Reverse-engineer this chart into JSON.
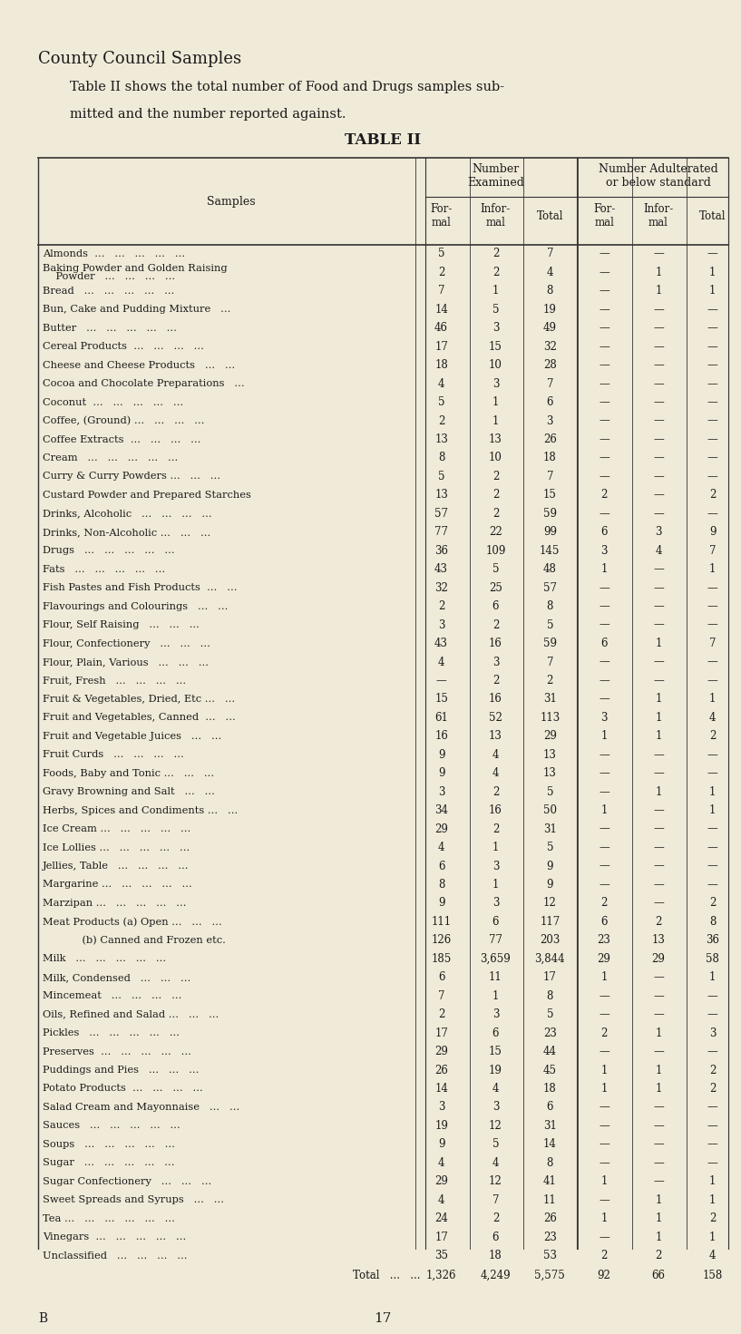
{
  "title_line1": "County Council Samples",
  "subtitle": "Table II shows the total number of Food and Drugs samples sub-\nmitted and the number reported against.",
  "table_title": "TABLE II",
  "col_group1": "Number\nExamined",
  "col_group2": "Number Adulterated\nor below standard",
  "col_headers": [
    "For-\nmal",
    "Infor-\nmal",
    "Total",
    "For-\nmal",
    "Infor-\nmal",
    "Total"
  ],
  "row_label_header": "Samples",
  "footer_left": "B",
  "footer_center": "17",
  "rows": [
    [
      "Almonds  ...   ...   ...   ...   ...",
      "5",
      "2",
      "7",
      "—",
      "—",
      "—"
    ],
    [
      "Baking Powder and Golden Raising\n    Powder   ...   ...   ...   ...",
      "2",
      "2",
      "4",
      "—",
      "1",
      "1"
    ],
    [
      "Bread   ...   ...   ...   ...   ...",
      "7",
      "1",
      "8",
      "—",
      "1",
      "1"
    ],
    [
      "Bun, Cake and Pudding Mixture   ...",
      "14",
      "5",
      "19",
      "—",
      "—",
      "—"
    ],
    [
      "Butter   ...   ...   ...   ...   ...",
      "46",
      "3",
      "49",
      "—",
      "—",
      "—"
    ],
    [
      "Cereal Products  ...   ...   ...   ...",
      "17",
      "15",
      "32",
      "—",
      "—",
      "—"
    ],
    [
      "Cheese and Cheese Products   ...   ...",
      "18",
      "10",
      "28",
      "—",
      "—",
      "—"
    ],
    [
      "Cocoa and Chocolate Preparations   ...",
      "4",
      "3",
      "7",
      "—",
      "—",
      "—"
    ],
    [
      "Coconut  ...   ...   ...   ...   ...",
      "5",
      "1",
      "6",
      "—",
      "—",
      "—"
    ],
    [
      "Coffee, (Ground) ...   ...   ...   ...",
      "2",
      "1",
      "3",
      "—",
      "—",
      "—"
    ],
    [
      "Coffee Extracts  ...   ...   ...   ...",
      "13",
      "13",
      "26",
      "—",
      "—",
      "—"
    ],
    [
      "Cream   ...   ...   ...   ...   ...",
      "8",
      "10",
      "18",
      "—",
      "—",
      "—"
    ],
    [
      "Curry & Curry Powders ...   ...   ...",
      "5",
      "2",
      "7",
      "—",
      "—",
      "—"
    ],
    [
      "Custard Powder and Prepared Starches",
      "13",
      "2",
      "15",
      "2",
      "—",
      "2"
    ],
    [
      "Drinks, Alcoholic   ...   ...   ...   ...",
      "57",
      "2",
      "59",
      "—",
      "—",
      "—"
    ],
    [
      "Drinks, Non-Alcoholic ...   ...   ...",
      "77",
      "22",
      "99",
      "6",
      "3",
      "9"
    ],
    [
      "Drugs   ...   ...   ...   ...   ...",
      "36",
      "109",
      "145",
      "3",
      "4",
      "7"
    ],
    [
      "Fats   ...   ...   ...   ...   ...",
      "43",
      "5",
      "48",
      "1",
      "—",
      "1"
    ],
    [
      "Fish Pastes and Fish Products  ...   ...",
      "32",
      "25",
      "57",
      "—",
      "—",
      "—"
    ],
    [
      "Flavourings and Colourings   ...   ...",
      "2",
      "6",
      "8",
      "—",
      "—",
      "—"
    ],
    [
      "Flour, Self Raising   ...   ...   ...",
      "3",
      "2",
      "5",
      "—",
      "—",
      "—"
    ],
    [
      "Flour, Confectionery   ...   ...   ...",
      "43",
      "16",
      "59",
      "6",
      "1",
      "7"
    ],
    [
      "Flour, Plain, Various   ...   ...   ...",
      "4",
      "3",
      "7",
      "—",
      "—",
      "—"
    ],
    [
      "Fruit, Fresh   ...   ...   ...   ...",
      "—",
      "2",
      "2",
      "—",
      "—",
      "—"
    ],
    [
      "Fruit & Vegetables, Dried, Etc ...   ...",
      "15",
      "16",
      "31",
      "—",
      "1",
      "1"
    ],
    [
      "Fruit and Vegetables, Canned  ...   ...",
      "61",
      "52",
      "113",
      "3",
      "1",
      "4"
    ],
    [
      "Fruit and Vegetable Juices   ...   ...",
      "16",
      "13",
      "29",
      "1",
      "1",
      "2"
    ],
    [
      "Fruit Curds   ...   ...   ...   ...",
      "9",
      "4",
      "13",
      "—",
      "—",
      "—"
    ],
    [
      "Foods, Baby and Tonic ...   ...   ...",
      "9",
      "4",
      "13",
      "—",
      "—",
      "—"
    ],
    [
      "Gravy Browning and Salt   ...   ...",
      "3",
      "2",
      "5",
      "—",
      "1",
      "1"
    ],
    [
      "Herbs, Spices and Condiments ...   ...",
      "34",
      "16",
      "50",
      "1",
      "—",
      "1"
    ],
    [
      "Ice Cream ...   ...   ...   ...   ...",
      "29",
      "2",
      "31",
      "—",
      "—",
      "—"
    ],
    [
      "Ice Lollies ...   ...   ...   ...   ...",
      "4",
      "1",
      "5",
      "—",
      "—",
      "—"
    ],
    [
      "Jellies, Table   ...   ...   ...   ...",
      "6",
      "3",
      "9",
      "—",
      "—",
      "—"
    ],
    [
      "Margarine ...   ...   ...   ...   ...",
      "8",
      "1",
      "9",
      "—",
      "—",
      "—"
    ],
    [
      "Marzipan ...   ...   ...   ...   ...",
      "9",
      "3",
      "12",
      "2",
      "—",
      "2"
    ],
    [
      "Meat Products (a) Open ...   ...   ...",
      "111",
      "6",
      "117",
      "6",
      "2",
      "8"
    ],
    [
      "            (b) Canned and Frozen etc.",
      "126",
      "77",
      "203",
      "23",
      "13",
      "36"
    ],
    [
      "Milk   ...   ...   ...   ...   ...",
      "185",
      "3,659",
      "3,844",
      "29",
      "29",
      "58"
    ],
    [
      "Milk, Condensed   ...   ...   ...",
      "6",
      "11",
      "17",
      "1",
      "—",
      "1"
    ],
    [
      "Mincemeat   ...   ...   ...   ...",
      "7",
      "1",
      "8",
      "—",
      "—",
      "—"
    ],
    [
      "Oils, Refined and Salad ...   ...   ...",
      "2",
      "3",
      "5",
      "—",
      "—",
      "—"
    ],
    [
      "Pickles   ...   ...   ...   ...   ...",
      "17",
      "6",
      "23",
      "2",
      "1",
      "3"
    ],
    [
      "Preserves  ...   ...   ...   ...   ...",
      "29",
      "15",
      "44",
      "—",
      "—",
      "—"
    ],
    [
      "Puddings and Pies   ...   ...   ...",
      "26",
      "19",
      "45",
      "1",
      "1",
      "2"
    ],
    [
      "Potato Products  ...   ...   ...   ...",
      "14",
      "4",
      "18",
      "1",
      "1",
      "2"
    ],
    [
      "Salad Cream and Mayonnaise   ...   ...",
      "3",
      "3",
      "6",
      "—",
      "—",
      "—"
    ],
    [
      "Sauces   ...   ...   ...   ...   ...",
      "19",
      "12",
      "31",
      "—",
      "—",
      "—"
    ],
    [
      "Soups   ...   ...   ...   ...   ...",
      "9",
      "5",
      "14",
      "—",
      "—",
      "—"
    ],
    [
      "Sugar   ...   ...   ...   ...   ...",
      "4",
      "4",
      "8",
      "—",
      "—",
      "—"
    ],
    [
      "Sugar Confectionery   ...   ...   ...",
      "29",
      "12",
      "41",
      "1",
      "—",
      "1"
    ],
    [
      "Sweet Spreads and Syrups   ...   ...",
      "4",
      "7",
      "11",
      "—",
      "1",
      "1"
    ],
    [
      "Tea ...   ...   ...   ...   ...   ...",
      "24",
      "2",
      "26",
      "1",
      "1",
      "2"
    ],
    [
      "Vinegars  ...   ...   ...   ...   ...",
      "17",
      "6",
      "23",
      "—",
      "1",
      "1"
    ],
    [
      "Unclassified   ...   ...   ...   ...",
      "35",
      "18",
      "53",
      "2",
      "2",
      "4"
    ]
  ],
  "total_row": [
    "Total   ...   ...",
    "1,326",
    "4,249",
    "5,575",
    "92",
    "66",
    "158"
  ],
  "bg_color": "#f0ead8",
  "text_color": "#1a1a1a",
  "line_color": "#333333"
}
